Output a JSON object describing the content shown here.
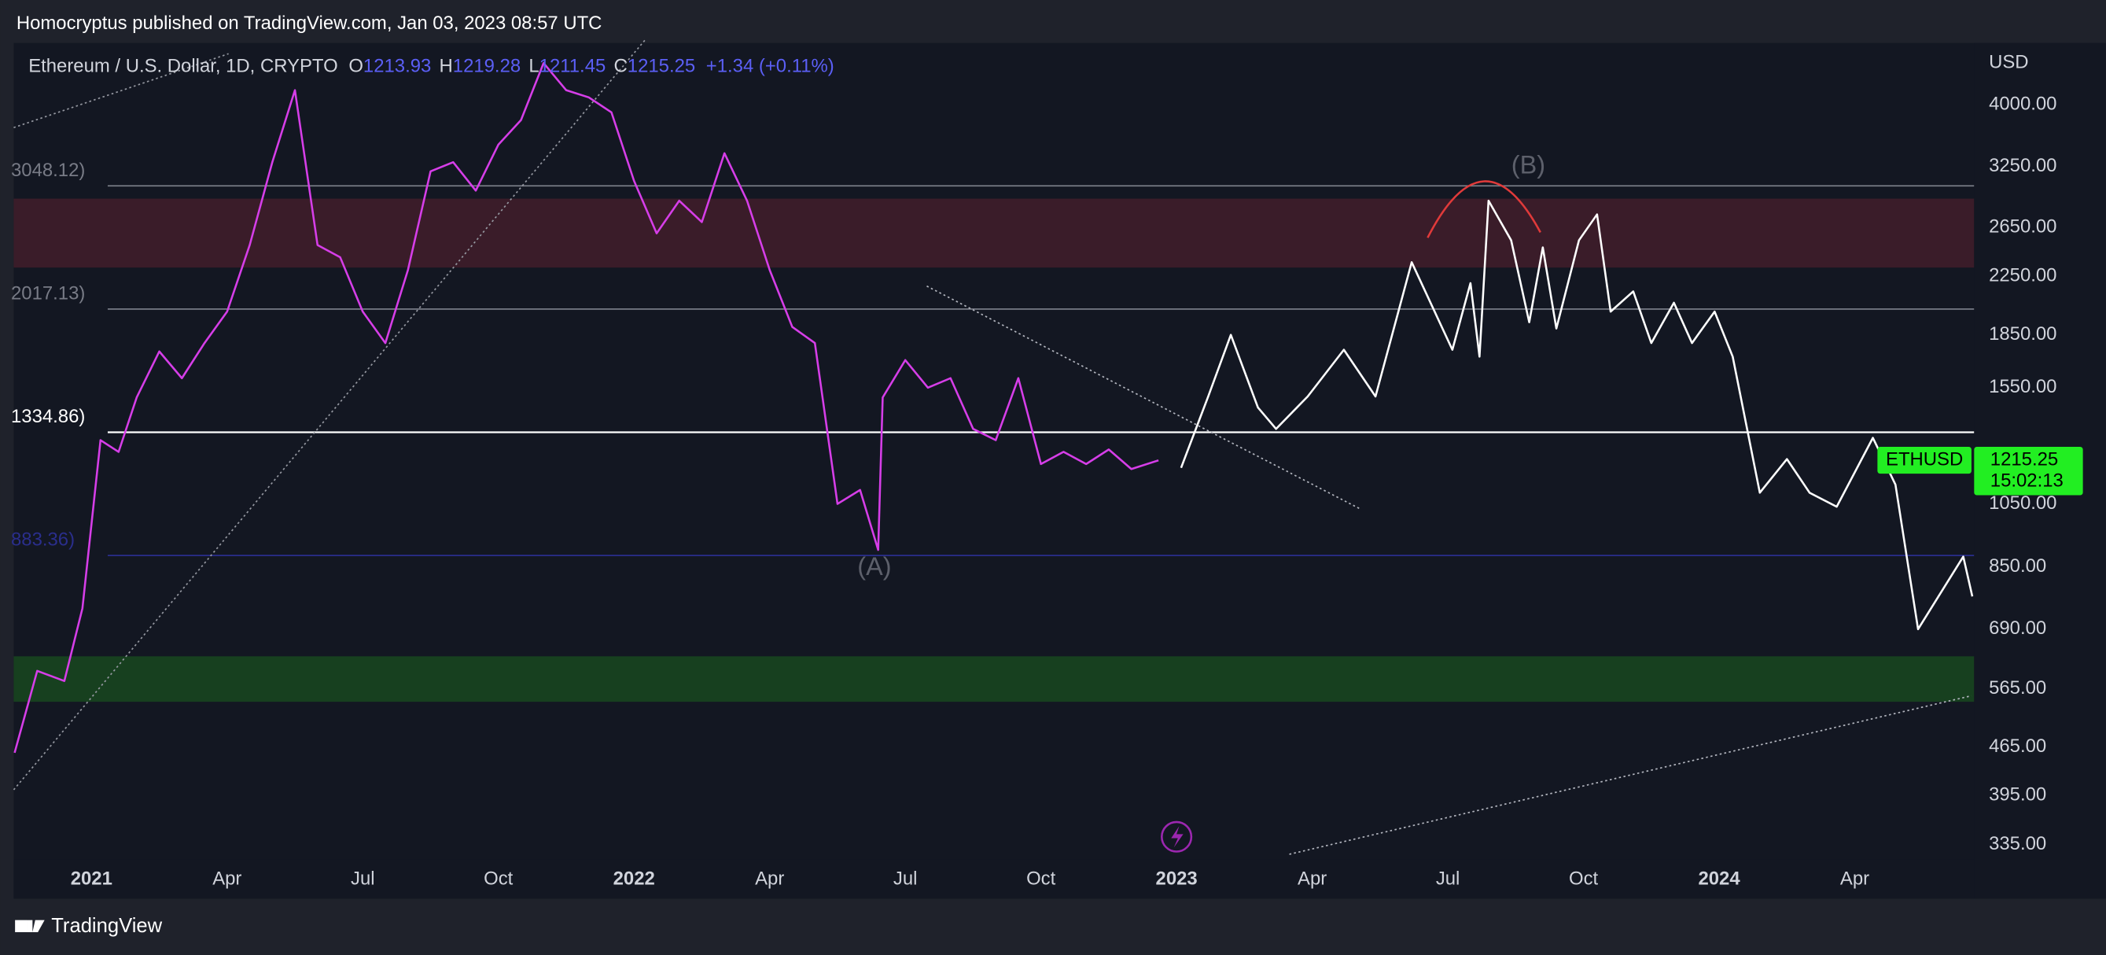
{
  "header": {
    "publisher": "Homocryptus published on TradingView.com, Jan 03, 2023 08:57 UTC",
    "symbol": "Ethereum / U.S. Dollar, 1D, CRYPTO",
    "ohlc": [
      {
        "key": "O",
        "value": 1213.93
      },
      {
        "key": "H",
        "value": 1219.28
      },
      {
        "key": "L",
        "value": 1211.45
      },
      {
        "key": "C",
        "value": 1215.25
      }
    ],
    "change": "+1.34 (+0.11%)"
  },
  "chart_data": {
    "type": "line",
    "log_scale": true,
    "currency": "USD",
    "xlim": [
      -1.72,
      41.64
    ],
    "ylim": [
      281,
      4920
    ],
    "xticks": [
      {
        "value": 0,
        "label": "2021"
      },
      {
        "value": 3,
        "label": "Apr"
      },
      {
        "value": 6,
        "label": "Jul"
      },
      {
        "value": 9,
        "label": "Oct"
      },
      {
        "value": 12,
        "label": "2022"
      },
      {
        "value": 15,
        "label": "Apr"
      },
      {
        "value": 18,
        "label": "Jul"
      },
      {
        "value": 21,
        "label": "Oct"
      },
      {
        "value": 24,
        "label": "2023"
      },
      {
        "value": 27,
        "label": "Apr"
      },
      {
        "value": 30,
        "label": "Jul"
      },
      {
        "value": 33,
        "label": "Oct"
      },
      {
        "value": 36,
        "label": "2024"
      },
      {
        "value": 39,
        "label": "Apr"
      }
    ],
    "yticks": [
      {
        "value": 4000,
        "label": "4000.00"
      },
      {
        "value": 3250,
        "label": "3250.00"
      },
      {
        "value": 2650,
        "label": "2650.00"
      },
      {
        "value": 2250,
        "label": "2250.00"
      },
      {
        "value": 1850,
        "label": "1850.00"
      },
      {
        "value": 1550,
        "label": "1550.00"
      },
      {
        "value": 1050,
        "label": "1050.00"
      },
      {
        "value": 850,
        "label": "850.00"
      },
      {
        "value": 690,
        "label": "690.00"
      },
      {
        "value": 565,
        "label": "565.00"
      },
      {
        "value": 465,
        "label": "465.00"
      },
      {
        "value": 395,
        "label": "395.00"
      },
      {
        "value": 335,
        "label": "335.00"
      }
    ],
    "levels": [
      {
        "value": 3048.12,
        "label": "3048.12)",
        "color": "#787b86"
      },
      {
        "value": 2017.13,
        "label": "2017.13)",
        "color": "#787b86"
      },
      {
        "value": 1334.86,
        "label": "1334.86)",
        "color": "#ffffff"
      },
      {
        "value": 883.36,
        "label": "883.36)",
        "color": "#2a2e8c"
      }
    ],
    "zones": [
      {
        "from": 2318,
        "to": 2920,
        "color": "#3a1c29"
      },
      {
        "from": 541,
        "to": 630,
        "color": "#17401f"
      }
    ],
    "annotations": [
      "(A)",
      "(B)"
    ],
    "series": [
      {
        "color": "#d63ee8",
        "x": [
          -1.7,
          -1.2,
          -0.6,
          -0.2,
          0.2,
          0.6,
          1,
          1.5,
          2,
          2.5,
          3,
          3.5,
          4,
          4.5,
          5,
          5.5,
          6,
          6.5,
          7,
          7.5,
          8,
          8.5,
          9,
          9.5,
          10,
          10.5,
          11,
          11.5,
          12,
          12.5,
          13,
          13.5,
          14,
          14.5,
          15,
          15.5,
          16,
          16.5,
          17,
          17.4,
          17.5,
          18,
          18.5,
          19,
          19.5,
          20,
          20.5,
          21,
          21.5,
          22,
          22.5,
          23,
          23.6
        ],
        "values": [
          456,
          600,
          580,
          740,
          1300,
          1250,
          1500,
          1750,
          1600,
          1800,
          2000,
          2500,
          3300,
          4200,
          2500,
          2400,
          2000,
          1800,
          2300,
          3200,
          3300,
          3000,
          3500,
          3800,
          4600,
          4200,
          4100,
          3900,
          3100,
          2600,
          2900,
          2700,
          3400,
          2900,
          2300,
          1900,
          1800,
          1050,
          1100,
          900,
          1500,
          1700,
          1550,
          1600,
          1350,
          1300,
          1600,
          1200,
          1250,
          1200,
          1260,
          1180,
          1215
        ]
      },
      {
        "color": "#ffffff",
        "x": [
          24.1,
          24.7,
          25.2,
          25.8,
          26.2,
          26.9,
          27.7,
          28.4,
          29.2,
          30.1,
          30.5,
          30.7,
          30.9,
          31.4,
          31.8,
          32.1,
          32.4,
          32.9,
          33.3,
          33.6,
          34.1,
          34.5,
          35.0,
          35.4,
          35.9,
          36.3,
          36.9,
          37.5,
          38.0,
          38.6,
          39.4,
          39.9,
          40.4,
          41.4,
          41.6
        ],
        "values": [
          1185,
          1505,
          1850,
          1450,
          1350,
          1505,
          1760,
          1505,
          2360,
          1760,
          2200,
          1720,
          2900,
          2540,
          1930,
          2480,
          1890,
          2540,
          2770,
          2000,
          2140,
          1800,
          2060,
          1800,
          2000,
          1720,
          1090,
          1220,
          1090,
          1040,
          1310,
          1120,
          690,
          880,
          770
        ]
      }
    ],
    "last_price": {
      "symbol": "ETHUSD",
      "value": 1215.25,
      "countdown": "15:02:13"
    }
  },
  "footer": {
    "brand": "TradingView"
  }
}
